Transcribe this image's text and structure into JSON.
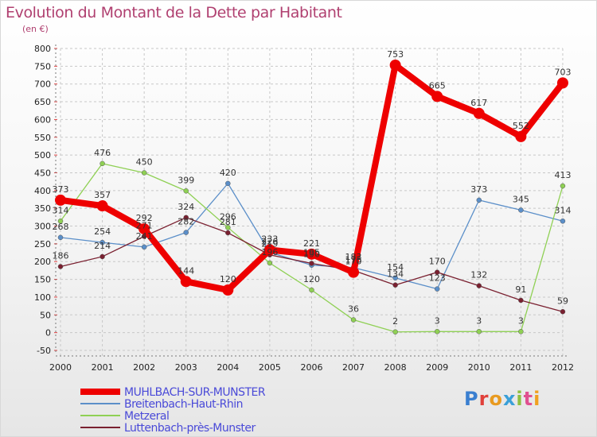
{
  "chart_data": {
    "type": "line",
    "title": "Evolution du Montant de la Dette par Habitant",
    "subtitle": "(en €)",
    "x": [
      "2000",
      "2001",
      "2002",
      "2003",
      "2004",
      "2005",
      "2006",
      "2007",
      "2008",
      "2009",
      "2010",
      "2011",
      "2012"
    ],
    "ylim": [
      -50,
      800
    ],
    "yticks": [
      -50,
      0,
      50,
      100,
      150,
      200,
      250,
      300,
      350,
      400,
      450,
      500,
      550,
      600,
      650,
      700,
      750,
      800
    ],
    "grid": true,
    "legend_position": "bottom-left",
    "series": [
      {
        "name": "Breitenbach-Haut-Rhin",
        "color": "#5b8fc9",
        "values": [
          268,
          254,
          241,
          282,
          420,
          226,
          190,
          183,
          154,
          123,
          373,
          345,
          314
        ]
      },
      {
        "name": "Metzeral",
        "color": "#8fd054",
        "values": [
          314,
          476,
          450,
          399,
          296,
          196,
          120,
          36,
          2,
          3,
          3,
          3,
          413
        ]
      },
      {
        "name": "Luttenbach-près-Munster",
        "color": "#7a2030",
        "values": [
          186,
          214,
          271,
          324,
          281,
          219,
          195,
          175,
          134,
          170,
          132,
          91,
          59
        ]
      },
      {
        "name": "MUHLBACH-SUR-MUNSTER",
        "color": "#ee0000",
        "values": [
          373,
          357,
          292,
          144,
          120,
          233,
          221,
          170,
          753,
          665,
          617,
          552,
          703
        ]
      }
    ],
    "legend_order": [
      "MUHLBACH-SUR-MUNSTER",
      "Breitenbach-Haut-Rhin",
      "Metzeral",
      "Luttenbach-près-Munster"
    ]
  },
  "logo": {
    "text": "Proxiti",
    "colors": [
      "#3a7fd0",
      "#e0403a",
      "#e89a20",
      "#3aa0d8",
      "#8fc040",
      "#e05090",
      "#f0a020"
    ]
  }
}
